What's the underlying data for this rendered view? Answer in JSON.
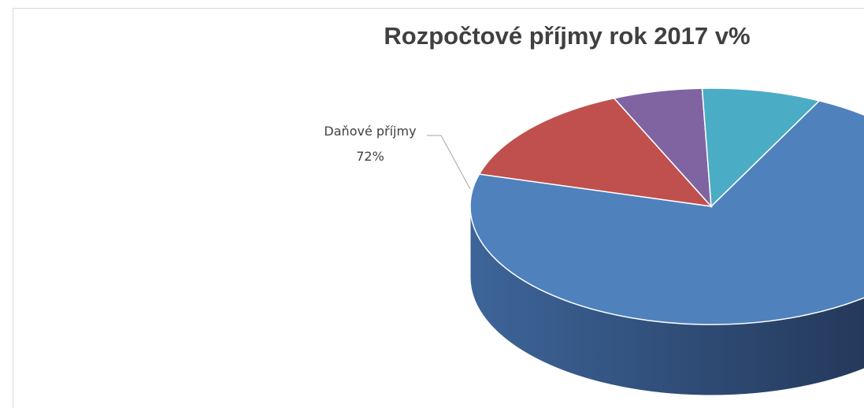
{
  "chart_data": {
    "type": "pie",
    "title": "Rozpočtové příjmy rok 2017 v%",
    "slices": [
      {
        "name": "Daňové příjmy",
        "value": 72,
        "color": "#4f81bd",
        "label": "Daňové příjmy",
        "pct_label": "72%"
      },
      {
        "name": "",
        "value": 14,
        "color": "#c0504d"
      },
      {
        "name": "",
        "value": 6,
        "color": "#8064a2"
      },
      {
        "name": "",
        "value": 8,
        "color": "#4bacc6"
      }
    ]
  }
}
